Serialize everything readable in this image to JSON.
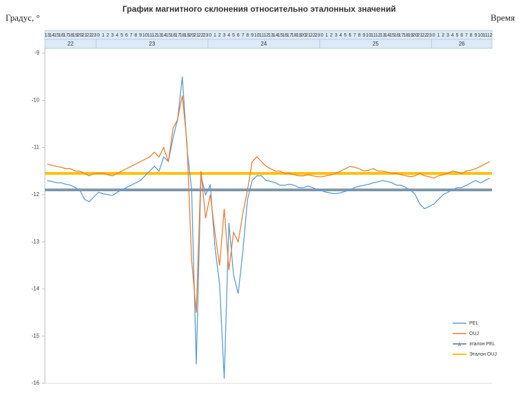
{
  "chart_data": {
    "type": "line",
    "title": "График магнитного склонения относительно эталонных значений",
    "y_label": "Градус, °",
    "x_label": "Время",
    "categories": [
      "13",
      "14",
      "15",
      "16",
      "17",
      "18",
      "19",
      "20",
      "21",
      "22",
      "23",
      "0",
      "1",
      "2",
      "3",
      "4",
      "5",
      "6",
      "7",
      "8",
      "9",
      "10",
      "11",
      "12",
      "13",
      "14",
      "15",
      "16",
      "17",
      "18",
      "19",
      "20",
      "21",
      "22",
      "23",
      "0",
      "1",
      "2",
      "3",
      "4",
      "5",
      "6",
      "7",
      "8",
      "9",
      "10",
      "11",
      "12",
      "13",
      "14",
      "15",
      "16",
      "17",
      "18",
      "19",
      "20",
      "21",
      "22",
      "23",
      "0",
      "1",
      "2",
      "3",
      "4",
      "5",
      "6",
      "7",
      "8",
      "9",
      "10",
      "11",
      "12",
      "13",
      "14",
      "15",
      "16",
      "17",
      "18",
      "19",
      "20",
      "21",
      "22",
      "23",
      "0",
      "1",
      "2",
      "3",
      "4",
      "5",
      "6",
      "7",
      "8",
      "9",
      "10",
      "11",
      "12"
    ],
    "days": [
      "22",
      "23",
      "24",
      "25",
      "26"
    ],
    "series": [
      {
        "name": "PEL",
        "color": "#5b9bd5",
        "values": [
          -11.7,
          -11.72,
          -11.75,
          -11.75,
          -11.78,
          -11.8,
          -11.85,
          -11.9,
          -12.1,
          -12.15,
          -12.05,
          -11.95,
          -11.98,
          -12.0,
          -12.02,
          -11.95,
          -11.9,
          -11.85,
          -11.8,
          -11.75,
          -11.7,
          -11.6,
          -11.5,
          -11.4,
          -11.5,
          -11.2,
          -11.3,
          -10.8,
          -10.4,
          -9.5,
          -11.0,
          -11.9,
          -15.6,
          -11.6,
          -12.0,
          -11.8,
          -13.1,
          -13.9,
          -15.9,
          -12.6,
          -13.7,
          -14.1,
          -13.2,
          -12.1,
          -11.7,
          -11.6,
          -11.6,
          -11.7,
          -11.72,
          -11.75,
          -11.8,
          -11.8,
          -11.78,
          -11.8,
          -11.85,
          -11.85,
          -11.82,
          -11.85,
          -11.9,
          -11.92,
          -11.95,
          -11.97,
          -11.98,
          -11.96,
          -11.93,
          -11.9,
          -11.85,
          -11.82,
          -11.8,
          -11.78,
          -11.75,
          -11.73,
          -11.7,
          -11.72,
          -11.75,
          -11.8,
          -11.8,
          -11.85,
          -11.9,
          -12.0,
          -12.2,
          -12.3,
          -12.25,
          -12.2,
          -12.1,
          -12.0,
          -11.95,
          -11.9,
          -11.85,
          -11.85,
          -11.8,
          -11.75,
          -11.7,
          -11.75,
          -11.7,
          -11.65
        ]
      },
      {
        "name": "OUJ",
        "color": "#ed7d31",
        "values": [
          -11.35,
          -11.38,
          -11.4,
          -11.42,
          -11.45,
          -11.45,
          -11.5,
          -11.5,
          -11.55,
          -11.6,
          -11.55,
          -11.55,
          -11.55,
          -11.58,
          -11.6,
          -11.55,
          -11.5,
          -11.45,
          -11.4,
          -11.35,
          -11.3,
          -11.25,
          -11.2,
          -11.1,
          -11.2,
          -11.0,
          -11.3,
          -10.6,
          -10.4,
          -9.9,
          -10.9,
          -13.4,
          -14.5,
          -11.5,
          -12.5,
          -12.0,
          -12.8,
          -13.5,
          -12.3,
          -13.6,
          -12.8,
          -13.0,
          -12.4,
          -11.9,
          -11.3,
          -11.2,
          -11.3,
          -11.4,
          -11.45,
          -11.5,
          -11.5,
          -11.55,
          -11.55,
          -11.58,
          -11.6,
          -11.6,
          -11.58,
          -11.6,
          -11.62,
          -11.62,
          -11.6,
          -11.58,
          -11.55,
          -11.5,
          -11.45,
          -11.4,
          -11.42,
          -11.45,
          -11.5,
          -11.48,
          -11.45,
          -11.5,
          -11.5,
          -11.52,
          -11.55,
          -11.55,
          -11.58,
          -11.6,
          -11.62,
          -11.6,
          -11.55,
          -11.6,
          -11.62,
          -11.65,
          -11.6,
          -11.58,
          -11.55,
          -11.5,
          -11.52,
          -11.55,
          -11.5,
          -11.48,
          -11.45,
          -11.4,
          -11.35,
          -11.3
        ]
      }
    ],
    "reference_lines": [
      {
        "name": "эталон PEL",
        "color": "#7f97aa",
        "value": -11.9,
        "marker": "star"
      },
      {
        "name": "Эталон OUJ",
        "color": "#ffc000",
        "value": -11.55
      }
    ],
    "ylim": [
      -16,
      -9
    ],
    "yticks": [
      -9,
      -10,
      -11,
      -12,
      -13,
      -14,
      -15,
      -16
    ],
    "legend": "lower right"
  }
}
